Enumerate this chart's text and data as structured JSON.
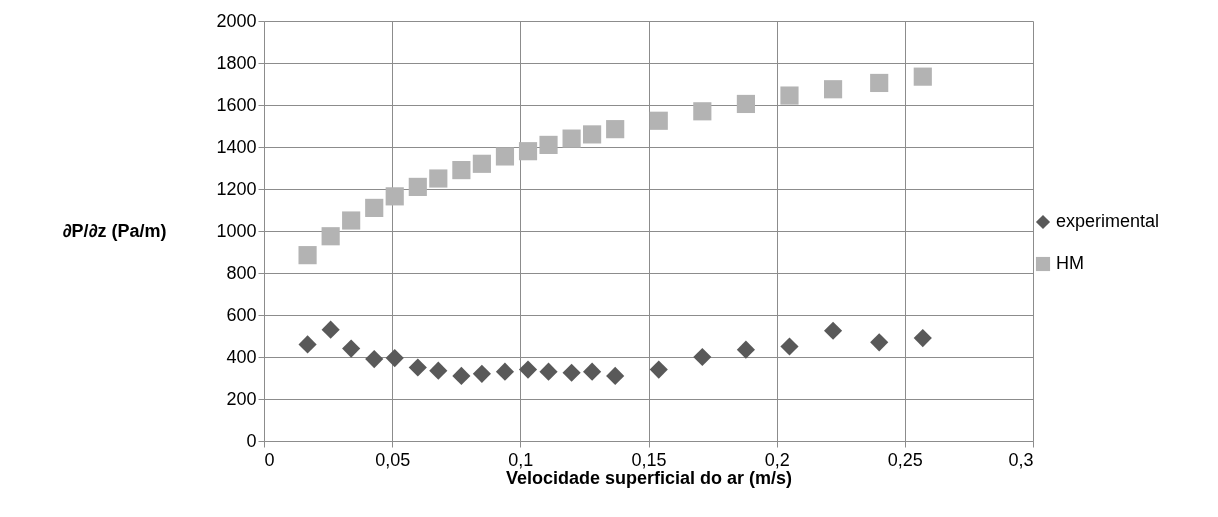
{
  "chart_data": {
    "type": "scatter",
    "xlabel": "Velocidade superficial do ar (m/s)",
    "ylabel": "∂P/∂z (Pa/m)",
    "xlim": [
      0,
      0.3
    ],
    "xticks": [
      0,
      {
        "value": 0.05,
        "label": "0,05"
      },
      {
        "value": 0.1,
        "label": "0,1"
      },
      {
        "value": 0.15,
        "label": "0,15"
      },
      {
        "value": 0.2,
        "label": "0,2"
      },
      {
        "value": 0.25,
        "label": "0,25"
      },
      {
        "value": 0.3,
        "label": "0,3"
      }
    ],
    "ylim": [
      0,
      2000
    ],
    "yticks": [
      0,
      200,
      400,
      600,
      800,
      1000,
      1200,
      1400,
      1600,
      1800,
      2000
    ],
    "grid": true,
    "legend": "right",
    "x": [
      0.017,
      0.026,
      0.034,
      0.043,
      0.051,
      0.06,
      0.068,
      0.077,
      0.085,
      0.094,
      0.103,
      0.111,
      0.12,
      0.128,
      0.137,
      0.154,
      0.171,
      0.188,
      0.205,
      0.222,
      0.24,
      0.257
    ],
    "series": [
      {
        "name": "experimental",
        "color": "#595959",
        "marker": "diamond",
        "values": [
          460,
          530,
          440,
          390,
          395,
          350,
          335,
          310,
          320,
          330,
          340,
          330,
          325,
          330,
          310,
          340,
          400,
          435,
          450,
          525,
          470,
          490
        ]
      },
      {
        "name": "HM",
        "color": "#b3b3b3",
        "marker": "square",
        "values": [
          885,
          975,
          1050,
          1110,
          1165,
          1210,
          1250,
          1290,
          1320,
          1355,
          1380,
          1410,
          1440,
          1460,
          1485,
          1525,
          1570,
          1605,
          1645,
          1675,
          1705,
          1735
        ]
      }
    ]
  }
}
